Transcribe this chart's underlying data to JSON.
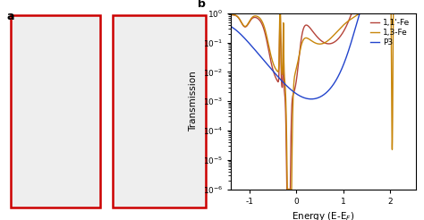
{
  "xlabel": "Energy (E-E$_F$)",
  "ylabel": "Transmission",
  "ylim_log": [
    -6,
    0
  ],
  "xlim": [
    -1.4,
    2.55
  ],
  "legend_labels": [
    "1,1'-Fe",
    "1,3-Fe",
    "P3"
  ],
  "line_colors": [
    "#b5443a",
    "#c8860a",
    "#2244cc"
  ],
  "lw": 1.0,
  "legend_fontsize": 6.5,
  "tick_fontsize": 6.5,
  "label_fontsize": 7.5,
  "fig_bg": "#ffffff",
  "left_panel_bg": "#e8e8e8",
  "box_edge_color": "#cc0000"
}
